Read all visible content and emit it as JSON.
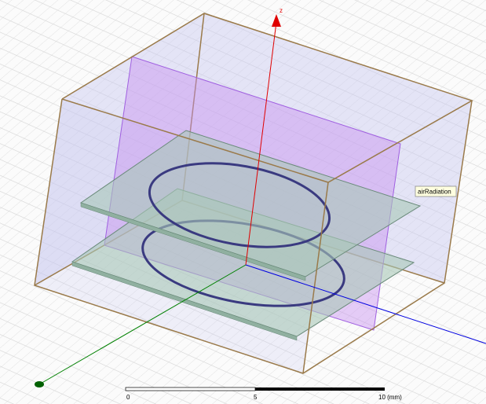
{
  "axis_label": "z",
  "object_label": "airRadiation",
  "scale": {
    "labels": [
      "0",
      "5",
      "10 (mm)"
    ]
  }
}
